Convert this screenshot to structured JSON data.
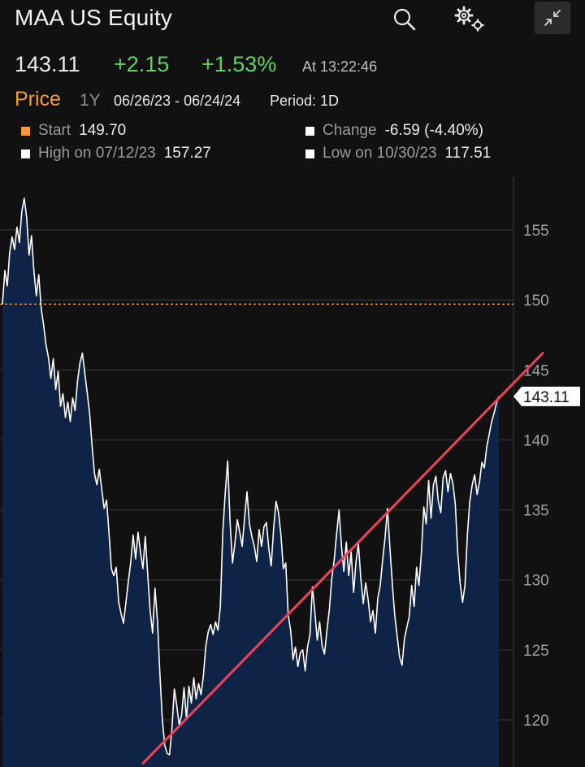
{
  "header": {
    "title": "MAA US Equity",
    "icons": [
      "search-icon",
      "gear-icon",
      "collapse-icon"
    ]
  },
  "quote": {
    "last": "143.11",
    "change": "+2.15",
    "change_pct": "+1.53%",
    "time": "At 13:22:46"
  },
  "controls": {
    "price_label": "Price",
    "period": "1Y",
    "date_range": "06/26/23 - 06/24/24",
    "period_label": "Period: 1D"
  },
  "stats": {
    "start": {
      "label": "Start",
      "value": "149.70",
      "color": "#f29b39"
    },
    "high": {
      "label": "High on 07/12/23",
      "value": "157.27",
      "color": "#ffffff"
    },
    "change": {
      "label": "Change",
      "value": "-6.59 (-4.40%)",
      "color": "#ffffff"
    },
    "low": {
      "label": "Low on 10/30/23",
      "value": "117.51",
      "color": "#ffffff"
    }
  },
  "colors": {
    "accent": "#f29b39",
    "positive": "#5fd35f",
    "area_fill": "#0f2346",
    "line": "#ffffff",
    "trendline": "#f0425a"
  },
  "chart_data": {
    "type": "area",
    "ylim": [
      117.5,
      157.3
    ],
    "y_ticks": [
      155,
      150,
      145,
      140,
      135,
      130,
      125,
      120
    ],
    "y_tick_labels": [
      "155",
      "150",
      "145",
      "140",
      "135",
      "130",
      "125",
      "120"
    ],
    "reference_line": 149.7,
    "last_label": "143.11",
    "x_range": [
      "06/26/23",
      "06/24/24"
    ],
    "values": [
      149.7,
      152.1,
      151.0,
      153.4,
      154.5,
      153.6,
      155.2,
      154.1,
      156.3,
      157.27,
      155.9,
      153.2,
      154.6,
      152.1,
      150.3,
      151.8,
      149.4,
      148.2,
      146.8,
      145.9,
      144.4,
      145.8,
      143.6,
      144.9,
      142.4,
      143.3,
      141.6,
      142.7,
      141.3,
      143.0,
      142.1,
      144.2,
      145.5,
      146.2,
      144.8,
      143.4,
      141.9,
      139.6,
      137.6,
      136.8,
      137.9,
      136.5,
      135.1,
      135.7,
      133.4,
      130.8,
      130.3,
      130.9,
      128.4,
      127.6,
      126.9,
      128.4,
      129.9,
      131.3,
      133.2,
      131.5,
      133.4,
      132.0,
      130.8,
      133.1,
      130.4,
      127.8,
      126.2,
      129.4,
      127.1,
      123.4,
      120.1,
      118.2,
      117.6,
      117.51,
      119.4,
      122.2,
      121.0,
      119.6,
      120.4,
      122.3,
      120.1,
      122.4,
      121.2,
      123.0,
      121.5,
      122.6,
      121.8,
      123.2,
      125.3,
      126.3,
      126.8,
      126.1,
      127.0,
      126.4,
      128.1,
      133.4,
      136.2,
      138.5,
      134.1,
      131.2,
      132.6,
      134.3,
      133.4,
      132.4,
      134.4,
      136.3,
      134.0,
      133.1,
      132.4,
      131.3,
      133.6,
      132.4,
      133.8,
      134.1,
      132.2,
      131.0,
      133.7,
      135.6,
      134.8,
      133.2,
      130.8,
      131.2,
      127.5,
      126.4,
      124.3,
      125.2,
      123.8,
      124.8,
      125.0,
      123.5,
      125.2,
      126.1,
      129.5,
      127.7,
      125.7,
      127.0,
      125.3,
      124.7,
      126.4,
      127.9,
      130.1,
      131.4,
      133.3,
      135.0,
      132.4,
      130.6,
      132.7,
      130.3,
      132.0,
      129.1,
      131.3,
      132.6,
      130.1,
      128.3,
      129.8,
      128.6,
      127.0,
      127.8,
      126.2,
      128.7,
      129.6,
      131.4,
      133.0,
      135.1,
      132.3,
      129.7,
      127.5,
      126.0,
      124.5,
      123.9,
      125.8,
      126.6,
      127.4,
      129.6,
      128.1,
      130.9,
      129.6,
      131.9,
      135.2,
      134.0,
      137.1,
      134.4,
      136.8,
      137.4,
      135.6,
      134.8,
      137.3,
      137.8,
      136.3,
      137.6,
      136.9,
      135.4,
      132.0,
      129.8,
      128.4,
      129.6,
      133.3,
      135.6,
      136.8,
      137.5,
      136.1,
      137.0,
      138.4,
      138.0,
      139.5,
      140.4,
      141.3,
      141.9,
      142.6,
      143.11
    ]
  }
}
